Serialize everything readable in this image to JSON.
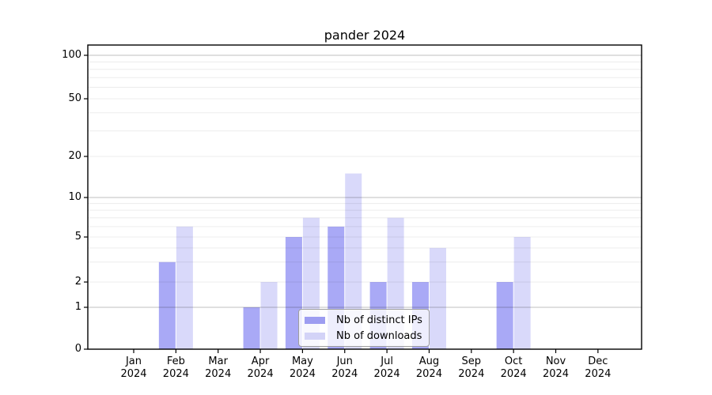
{
  "title": "pander 2024",
  "legend": {
    "items": [
      {
        "label": "Nb of distinct IPs",
        "color": "#9d9df1"
      },
      {
        "label": "Nb of downloads",
        "color": "#d3d3f7"
      }
    ]
  },
  "chart_data": {
    "type": "bar",
    "title": "pander 2024",
    "yscale": "pseudo-log",
    "ylim": [
      0,
      140
    ],
    "grid": true,
    "legend_position": "lower center inside",
    "y_ticks": [
      0,
      1,
      2,
      5,
      10,
      20,
      50,
      100
    ],
    "categories": [
      "Jan 2024",
      "Feb 2024",
      "Mar 2024",
      "Apr 2024",
      "May 2024",
      "Jun 2024",
      "Jul 2024",
      "Aug 2024",
      "Sep 2024",
      "Oct 2024",
      "Nov 2024",
      "Dec 2024"
    ],
    "series": [
      {
        "name": "Nb of distinct IPs",
        "color": "#a9a9f6",
        "values": [
          0,
          3,
          0,
          1,
          5,
          6,
          2,
          2,
          0,
          2,
          0,
          0
        ]
      },
      {
        "name": "Nb of downloads",
        "color": "#d9d9fa",
        "values": [
          0,
          6,
          0,
          2,
          7,
          15,
          7,
          4,
          0,
          5,
          0,
          0
        ]
      }
    ]
  }
}
